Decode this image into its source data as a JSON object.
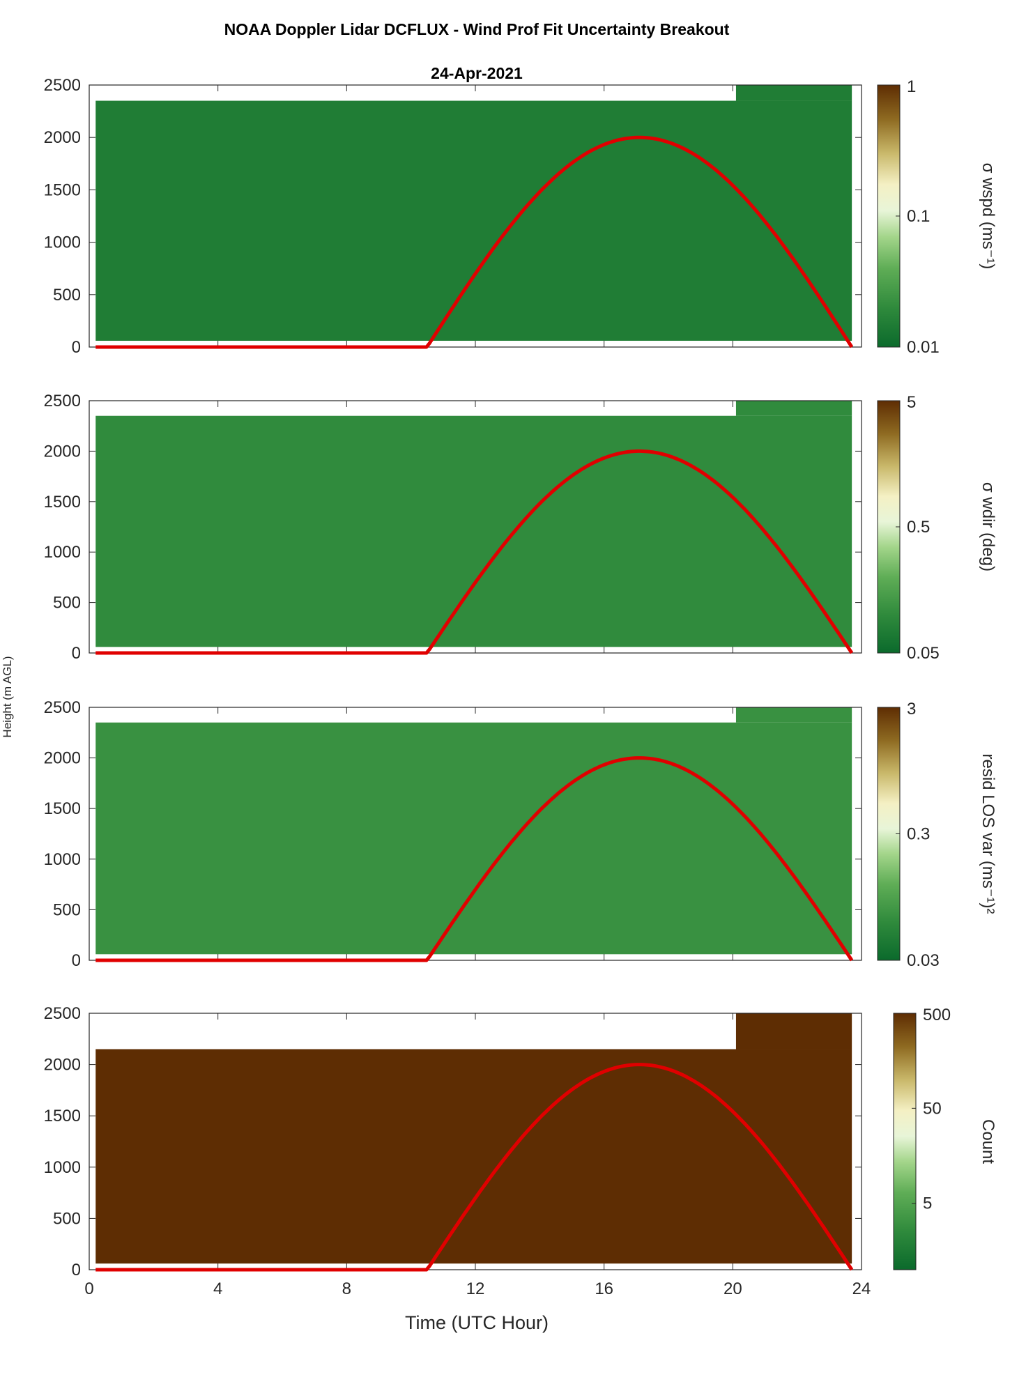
{
  "title": "NOAA Doppler Lidar DCFLUX - Wind Prof Fit Uncertainty Breakout",
  "subtitle": "24-Apr-2021",
  "shared_ylabel": "Height (m AGL)",
  "xlabel": "Time (UTC Hour)",
  "colors": {
    "curve": "#e00000",
    "background": "#ffffff",
    "colormap": [
      "#0b6a2c",
      "#2f8a3c",
      "#5fad56",
      "#a3d58a",
      "#e8f5d8",
      "#f4f0c4",
      "#c9b86a",
      "#8e6a21",
      "#5e2d03"
    ]
  },
  "chart_data": [
    {
      "type": "heatmap",
      "name": "panel-wspd",
      "colorbar_label": "σ wspd (ms⁻¹)",
      "colorbar_scale": "log",
      "colorbar_range": [
        0.01,
        1
      ],
      "colorbar_ticks": [
        "1",
        "0.1",
        "0.01"
      ],
      "colorbar_tick_values": [
        1,
        0.1,
        0.01
      ],
      "xlim": [
        0,
        24
      ],
      "ylim": [
        0,
        2500
      ],
      "xticks": [
        0,
        4,
        8,
        12,
        16,
        20,
        24
      ],
      "yticks": [
        "2500",
        "2000",
        "1500",
        "1000",
        "500",
        "0"
      ],
      "ytick_values": [
        2500,
        2000,
        1500,
        1000,
        500,
        0
      ],
      "profile_top_height": 2350,
      "uniform_value": 0.014,
      "white_above_top_before_hour": 20.1,
      "overlay_curve": {
        "start_hour": 0.2,
        "end_hour": 23.7,
        "rise_hour": 10.5,
        "peak_hour": 17.1,
        "peak_height": 2000
      }
    },
    {
      "type": "heatmap",
      "name": "panel-wdir",
      "colorbar_label": "σ wdir (deg)",
      "colorbar_scale": "log",
      "colorbar_range": [
        0.05,
        5
      ],
      "colorbar_ticks": [
        "5",
        "0.5",
        "0.05"
      ],
      "colorbar_tick_values": [
        5,
        0.5,
        0.05
      ],
      "xlim": [
        0,
        24
      ],
      "ylim": [
        0,
        2500
      ],
      "xticks": [
        0,
        4,
        8,
        12,
        16,
        20,
        24
      ],
      "yticks": [
        "2500",
        "2000",
        "1500",
        "1000",
        "500",
        "0"
      ],
      "ytick_values": [
        2500,
        2000,
        1500,
        1000,
        500,
        0
      ],
      "profile_top_height": 2350,
      "uniform_value": 0.09,
      "white_above_top_before_hour": 20.1,
      "overlay_curve": {
        "start_hour": 0.2,
        "end_hour": 23.7,
        "rise_hour": 10.5,
        "peak_hour": 17.1,
        "peak_height": 2000
      }
    },
    {
      "type": "heatmap",
      "name": "panel-resid",
      "colorbar_label": "resid LOS var (ms⁻¹)²",
      "colorbar_scale": "log",
      "colorbar_range": [
        0.03,
        3
      ],
      "colorbar_ticks": [
        "3",
        "0.3",
        "0.03"
      ],
      "colorbar_tick_values": [
        3,
        0.3,
        0.03
      ],
      "xlim": [
        0,
        24
      ],
      "ylim": [
        0,
        2500
      ],
      "xticks": [
        0,
        4,
        8,
        12,
        16,
        20,
        24
      ],
      "yticks": [
        "2500",
        "2000",
        "1500",
        "1000",
        "500",
        "0"
      ],
      "ytick_values": [
        2500,
        2000,
        1500,
        1000,
        500,
        0
      ],
      "profile_top_height": 2350,
      "uniform_value": 0.06,
      "white_above_top_before_hour": 20.1,
      "overlay_curve": {
        "start_hour": 0.2,
        "end_hour": 23.7,
        "rise_hour": 10.5,
        "peak_hour": 17.1,
        "peak_height": 2000
      }
    },
    {
      "type": "heatmap",
      "name": "panel-count",
      "colorbar_label": "Count",
      "colorbar_scale": "log",
      "colorbar_range": [
        1,
        500
      ],
      "colorbar_ticks": [
        "500",
        "50",
        "5"
      ],
      "colorbar_tick_values": [
        500,
        50,
        5
      ],
      "xlim": [
        0,
        24
      ],
      "ylim": [
        0,
        2500
      ],
      "xticks": [
        "0",
        "4",
        "8",
        "12",
        "16",
        "20",
        "24"
      ],
      "xtick_values": [
        0,
        4,
        8,
        12,
        16,
        20,
        24
      ],
      "yticks": [
        "2500",
        "2000",
        "1500",
        "1000",
        "500",
        "0"
      ],
      "ytick_values": [
        2500,
        2000,
        1500,
        1000,
        500,
        0
      ],
      "profile_top_height": 2150,
      "uniform_value": 500,
      "white_above_top_before_hour": 20.1,
      "overlay_curve": {
        "start_hour": 0.2,
        "end_hour": 23.7,
        "rise_hour": 10.5,
        "peak_hour": 17.1,
        "peak_height": 2000
      }
    }
  ]
}
